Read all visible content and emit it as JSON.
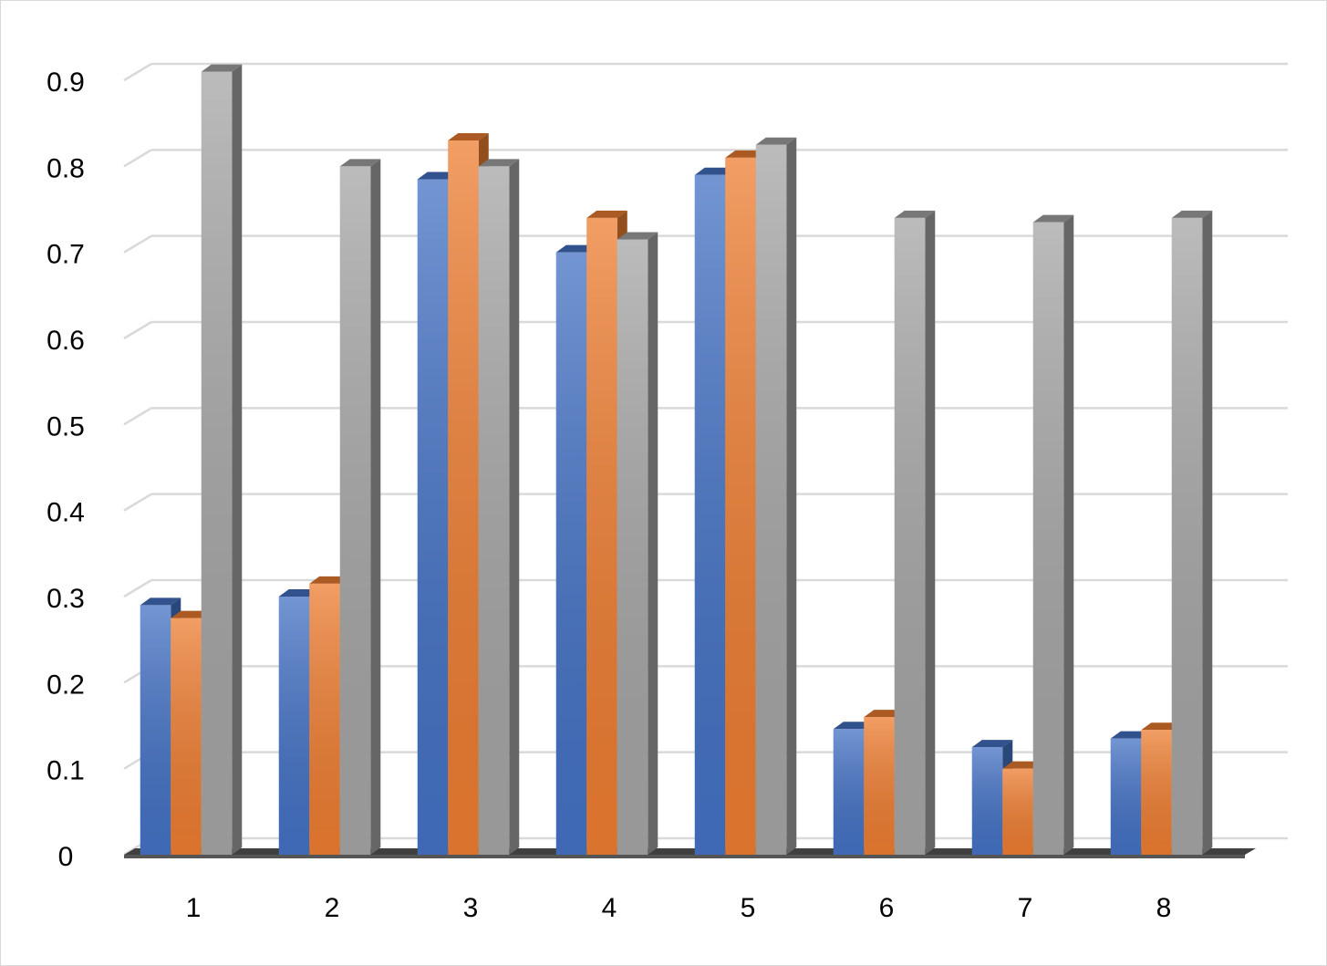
{
  "chart_data": {
    "type": "bar3d",
    "categories": [
      "1",
      "2",
      "3",
      "4",
      "5",
      "6",
      "7",
      "8"
    ],
    "series": [
      {
        "color": "#4472c4",
        "values": [
          0.29,
          0.3,
          0.785,
          0.7,
          0.79,
          0.146,
          0.125,
          0.135
        ]
      },
      {
        "color": "#ed7d31",
        "values": [
          0.275,
          0.315,
          0.83,
          0.74,
          0.81,
          0.16,
          0.1,
          0.145
        ]
      },
      {
        "color": "#a5a5a5",
        "values": [
          0.91,
          0.8,
          0.8,
          0.715,
          0.825,
          0.74,
          0.735,
          0.74
        ]
      }
    ],
    "ylim": [
      0,
      0.9
    ],
    "yticks": [
      0,
      0.1,
      0.2,
      0.3,
      0.4,
      0.5,
      0.6,
      0.7,
      0.8,
      0.9
    ],
    "grid": true
  }
}
